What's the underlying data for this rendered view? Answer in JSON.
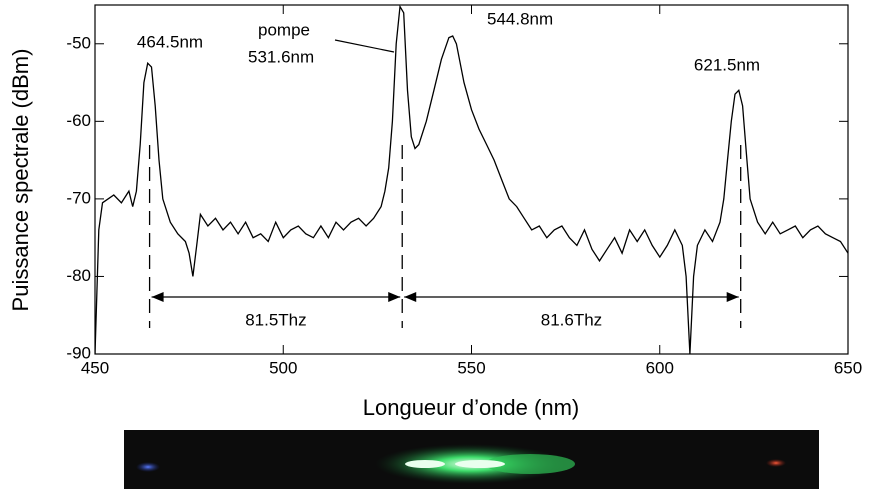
{
  "chart_data": {
    "type": "line",
    "xlabel": "Longueur d’onde (nm)",
    "ylabel": "Puissance spectrale (dBm)",
    "xlim": [
      450,
      650
    ],
    "ylim": [
      -90,
      -45
    ],
    "xticks": [
      450,
      500,
      550,
      600,
      650
    ],
    "yticks": [
      -90,
      -80,
      -70,
      -60,
      -50
    ],
    "color": "#000000",
    "x": [
      450,
      451,
      452,
      455,
      457,
      459,
      460,
      461,
      462,
      463,
      464,
      465,
      466,
      467,
      468,
      470,
      472,
      474,
      475,
      476,
      477,
      478,
      480,
      482,
      484,
      486,
      488,
      490,
      492,
      494,
      496,
      498,
      500,
      502,
      504,
      506,
      508,
      510,
      512,
      514,
      516,
      518,
      520,
      522,
      524,
      526,
      527,
      528,
      529,
      530,
      531,
      532,
      533,
      534,
      535,
      536,
      538,
      540,
      542,
      544,
      545,
      546,
      548,
      550,
      552,
      554,
      556,
      558,
      560,
      562,
      564,
      566,
      568,
      570,
      572,
      574,
      576,
      578,
      580,
      582,
      584,
      586,
      588,
      590,
      592,
      594,
      596,
      598,
      600,
      602,
      604,
      606,
      607,
      608,
      609,
      610,
      612,
      614,
      616,
      617,
      618,
      619,
      620,
      621,
      622,
      623,
      624,
      626,
      628,
      630,
      632,
      634,
      636,
      638,
      640,
      642,
      644,
      646,
      648,
      650
    ],
    "values": [
      -90,
      -74,
      -70.5,
      -69.5,
      -70.5,
      -69,
      -71,
      -69,
      -63,
      -55,
      -52.5,
      -53,
      -58,
      -65,
      -70,
      -73,
      -74.5,
      -75.5,
      -77,
      -80,
      -76,
      -72,
      -73.5,
      -72.5,
      -74,
      -73,
      -74.5,
      -73,
      -75,
      -74.5,
      -75.5,
      -73,
      -75,
      -74,
      -73.5,
      -74.5,
      -75,
      -73.5,
      -75,
      -73,
      -74,
      -73,
      -72.5,
      -73.5,
      -72.5,
      -71,
      -69,
      -66,
      -60,
      -50,
      -45.2,
      -46,
      -56,
      -62,
      -63.5,
      -63,
      -60,
      -56,
      -52,
      -49.2,
      -49,
      -50,
      -55,
      -58.5,
      -61,
      -63,
      -65,
      -67.5,
      -70,
      -71,
      -72.5,
      -74,
      -73.5,
      -75,
      -74,
      -73.5,
      -75,
      -76,
      -74,
      -76.5,
      -78,
      -76.5,
      -75,
      -77,
      -74,
      -75.5,
      -74,
      -76,
      -77.5,
      -76,
      -74,
      -76,
      -80,
      -90,
      -80,
      -76,
      -74,
      -75.5,
      -73,
      -70,
      -65,
      -60,
      -56.5,
      -56,
      -58,
      -64,
      -70,
      -73,
      -74.5,
      -73,
      -74.5,
      -74,
      -73.5,
      -75,
      -74,
      -73.5,
      -74.5,
      -75,
      -75.5,
      -77
    ],
    "peaks": [
      {
        "value": 464.5,
        "label": "464.5nm",
        "dashed": true
      },
      {
        "value": 531.6,
        "label": "531.6nm",
        "dashed": true
      },
      {
        "value": 544.8,
        "label": "544.8nm",
        "dashed": false
      },
      {
        "value": 621.5,
        "label": "621.5nm",
        "dashed": true
      }
    ],
    "pump_label": "pompe",
    "spacings": [
      "81.5Thz",
      "81.6Thz"
    ]
  }
}
